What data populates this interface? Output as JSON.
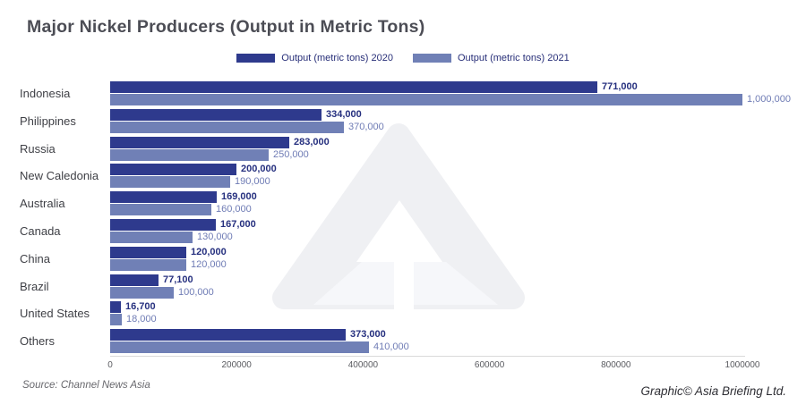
{
  "title": "Major Nickel Producers (Output in Metric Tons)",
  "source": "Source: Channel News Asia",
  "credit": "Graphic© Asia Briefing Ltd.",
  "colors": {
    "series2020": "#2E3A8D",
    "series2021": "#7080B6",
    "value_label_2020": "#26307F",
    "value_label_2021": "#6F7CB5",
    "legend_text": "#272E78",
    "title_text": "#4C4D55",
    "category_text": "#3F4046",
    "axis_line": "#D9D9D9",
    "tick_text": "#5A5B60",
    "watermark_band": "#EFF0F3",
    "watermark_light": "#F6F7FA"
  },
  "chart_data": {
    "type": "bar",
    "orientation": "horizontal",
    "title": "Major Nickel Producers (Output in Metric Tons)",
    "categories": [
      "Indonesia",
      "Philippines",
      "Russia",
      "New Caledonia",
      "Australia",
      "Canada",
      "China",
      "Brazil",
      "United States",
      "Others"
    ],
    "series": [
      {
        "name": "Output (metric tons) 2020",
        "color": "#2E3A8D",
        "values": [
          771000,
          334000,
          283000,
          200000,
          169000,
          167000,
          120000,
          77100,
          16700,
          373000
        ]
      },
      {
        "name": "Output (metric tons) 2021",
        "color": "#7080B6",
        "values": [
          1000000,
          370000,
          250000,
          190000,
          160000,
          130000,
          120000,
          100000,
          18000,
          410000
        ]
      }
    ],
    "value_labels": [
      [
        "771,000",
        "334,000",
        "283,000",
        "200,000",
        "169,000",
        "167,000",
        "120,000",
        "77,100",
        "16,700",
        "373,000"
      ],
      [
        "1,000,000",
        "370,000",
        "250,000",
        "190,000",
        "160,000",
        "130,000",
        "120,000",
        "100,000",
        "18,000",
        "410,000"
      ]
    ],
    "xlim": [
      0,
      1000000
    ],
    "x_ticks": [
      {
        "value": 0,
        "label": "0"
      },
      {
        "value": 200000,
        "label": "200000"
      },
      {
        "value": 400000,
        "label": "400000"
      },
      {
        "value": 600000,
        "label": "600000"
      },
      {
        "value": 800000,
        "label": "800000"
      },
      {
        "value": 1000000,
        "label": "1000000"
      }
    ],
    "grid": false,
    "legend_position": "top-center"
  }
}
